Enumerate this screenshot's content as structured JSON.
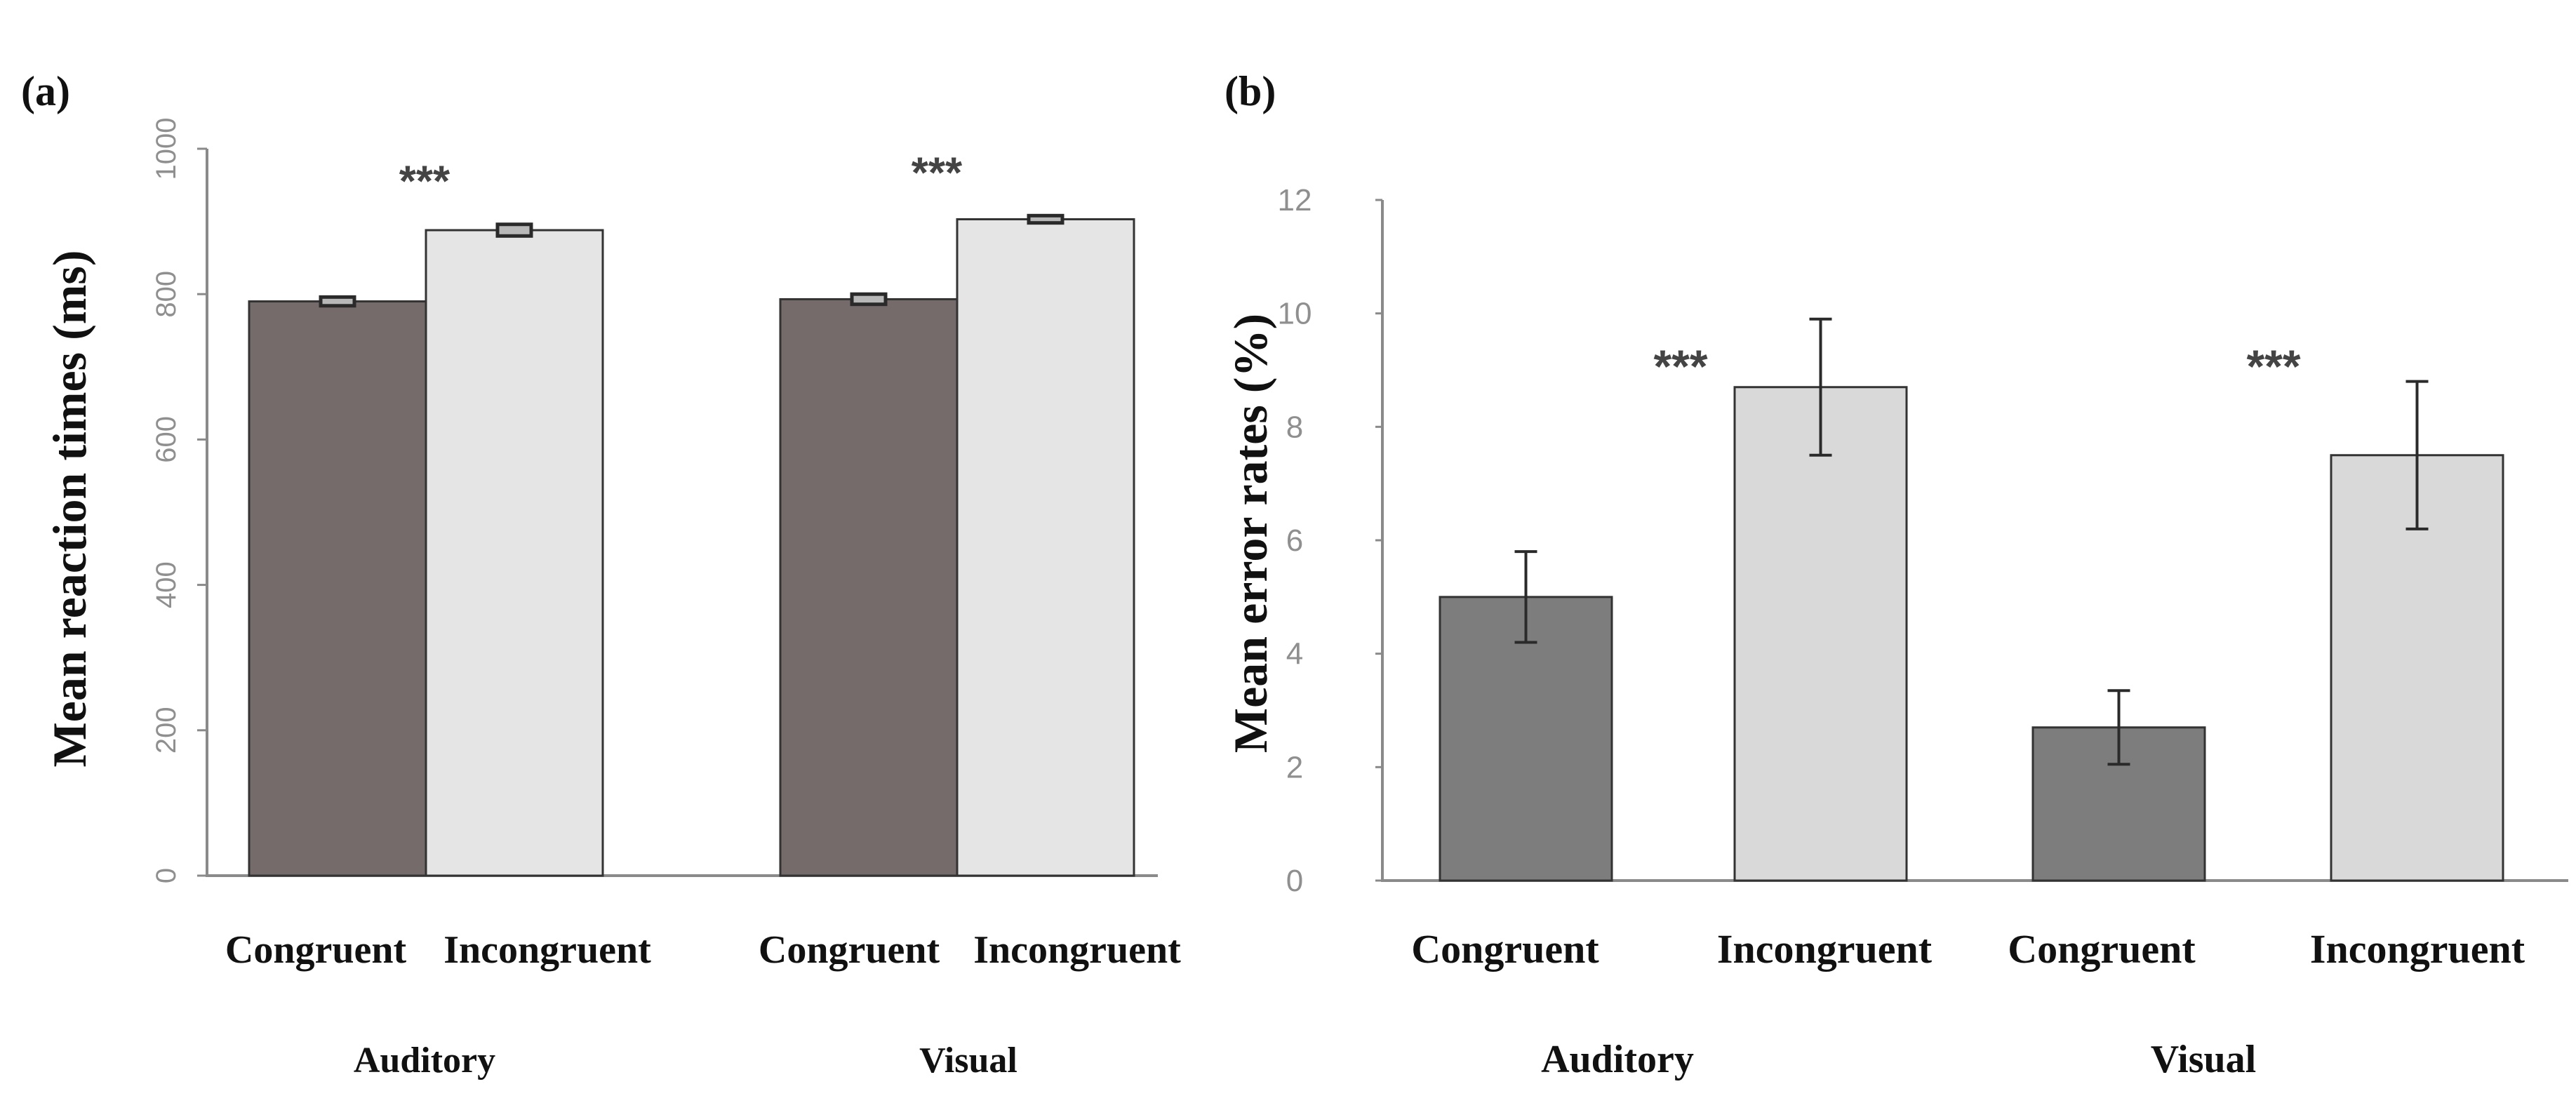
{
  "figure": {
    "panels": [
      {
        "label": "(a)"
      },
      {
        "label": "(b)"
      }
    ]
  },
  "colors": {
    "background": "#ffffff",
    "axis": "#8a8a8a",
    "tick_text": "#8f8f8f",
    "label_text": "#111111",
    "bar_outline": "#333333",
    "congruent_a": "#766b6b",
    "incongruent_a": "#e5e5e5",
    "congruent_b": "#7d7d7d",
    "incongruent_b": "#d9d9d9",
    "error_bar": "#2a2a2a",
    "significance": "#444444"
  },
  "chart_data": [
    {
      "type": "bar",
      "panel": "(a)",
      "title": "",
      "ylabel": "Mean reaction times (ms)",
      "xlabel": "",
      "ylim": [
        0,
        1000
      ],
      "yticks": [
        0,
        200,
        400,
        600,
        800,
        1000
      ],
      "groups": [
        "Auditory",
        "Visual"
      ],
      "categories": [
        "Congruent",
        "Incongruent"
      ],
      "series": [
        {
          "name": "Congruent",
          "values": [
            790,
            793
          ],
          "errors": [
            6,
            7
          ]
        },
        {
          "name": "Incongruent",
          "values": [
            888,
            903
          ],
          "errors": [
            8,
            5
          ]
        }
      ],
      "significance": [
        "***",
        "***"
      ]
    },
    {
      "type": "bar",
      "panel": "(b)",
      "title": "",
      "ylabel": "Mean error rates (%)",
      "xlabel": "",
      "ylim": [
        0,
        12
      ],
      "yticks": [
        0,
        2,
        4,
        6,
        8,
        10,
        12
      ],
      "groups": [
        "Auditory",
        "Visual"
      ],
      "categories": [
        "Congruent",
        "Incongruent"
      ],
      "series": [
        {
          "name": "Congruent",
          "values": [
            5.0,
            2.7
          ],
          "errors": [
            0.8,
            0.65
          ]
        },
        {
          "name": "Incongruent",
          "values": [
            8.7,
            7.5
          ],
          "errors": [
            1.2,
            1.3
          ]
        }
      ],
      "significance": [
        "***",
        "***"
      ]
    }
  ]
}
